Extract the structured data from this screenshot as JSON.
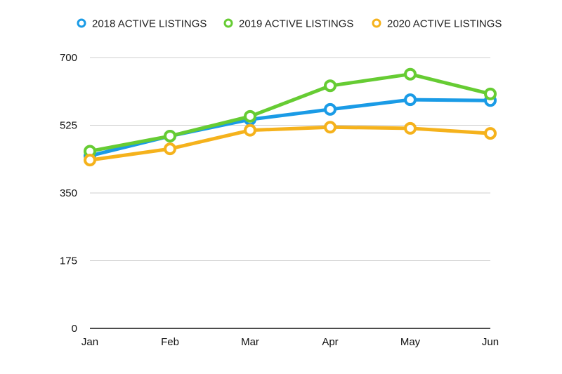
{
  "chart_data": {
    "type": "line",
    "title": "",
    "xlabel": "",
    "ylabel": "",
    "categories": [
      "Jan",
      "Feb",
      "Mar",
      "Apr",
      "May",
      "Jun"
    ],
    "ylim": [
      0,
      700
    ],
    "yticks": [
      "0",
      "175",
      "350",
      "525",
      "700"
    ],
    "grid": true,
    "legend_position": "top",
    "series": [
      {
        "name": "2018 ACTIVE LISTINGS",
        "color": "#1a9be6",
        "values": [
          446,
          497,
          540,
          566,
          591,
          589
        ]
      },
      {
        "name": "2019 ACTIVE LISTINGS",
        "color": "#66cc33",
        "values": [
          458,
          497,
          548,
          627,
          657,
          606
        ]
      },
      {
        "name": "2020 ACTIVE LISTINGS",
        "color": "#f5b21c",
        "values": [
          435,
          464,
          512,
          520,
          517,
          504
        ]
      }
    ]
  }
}
